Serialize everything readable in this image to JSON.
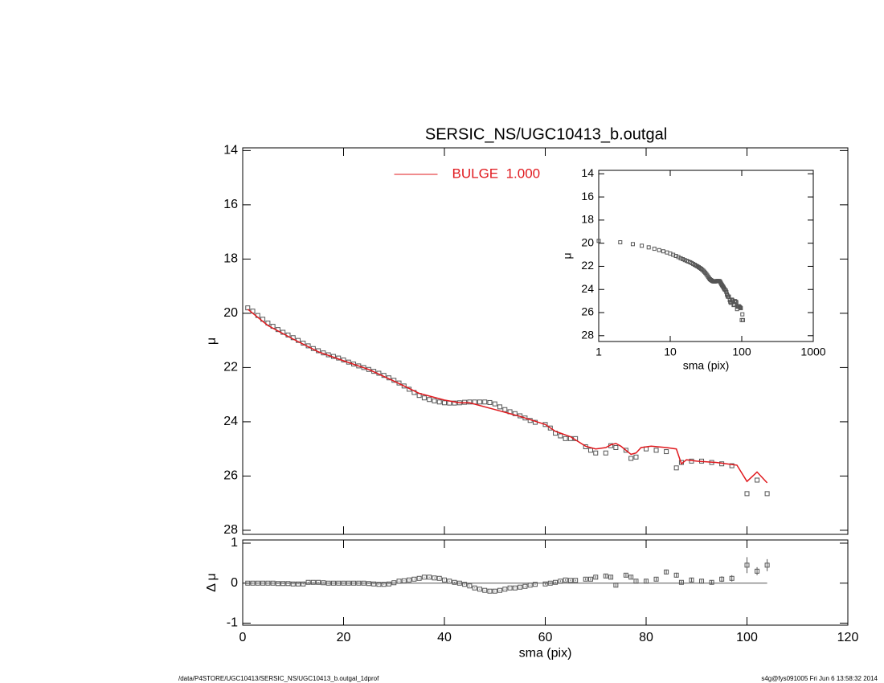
{
  "chart_data": [
    {
      "type": "scatter",
      "title": "SERSIC_NS/UGC10413_b.outgal",
      "ylabel": "μ",
      "xlim": [
        0,
        120
      ],
      "xticks": [
        0,
        20,
        40,
        60,
        80,
        100,
        120
      ],
      "xticklabels": false,
      "ylim": [
        28.15,
        13.9
      ],
      "yticks": [
        14,
        16,
        18,
        20,
        22,
        24,
        26,
        28
      ],
      "legend": "top",
      "series": [
        {
          "mark": "square",
          "color": "#555555",
          "x": [
            1,
            2,
            3,
            4,
            5,
            6,
            7,
            8,
            9,
            10,
            11,
            12,
            13,
            14,
            15,
            16,
            17,
            18,
            19,
            20,
            21,
            22,
            23,
            24,
            25,
            26,
            27,
            28,
            29,
            30,
            31,
            32,
            33,
            34,
            35,
            36,
            37,
            38,
            39,
            40,
            41,
            42,
            43,
            44,
            45,
            46,
            47,
            48,
            49,
            50,
            51,
            52,
            53,
            54,
            55,
            56,
            57,
            58,
            60,
            61,
            62,
            63,
            64,
            65,
            66,
            68,
            69,
            70,
            72,
            73,
            74,
            76,
            77,
            78,
            80,
            82,
            84,
            86,
            87,
            89,
            91,
            93,
            95,
            97,
            100,
            102,
            104
          ],
          "values": [
            19.8,
            19.92,
            20.08,
            20.22,
            20.36,
            20.48,
            20.6,
            20.7,
            20.8,
            20.9,
            21.0,
            21.1,
            21.2,
            21.3,
            21.38,
            21.46,
            21.53,
            21.59,
            21.65,
            21.72,
            21.8,
            21.87,
            21.94,
            22.0,
            22.07,
            22.14,
            22.21,
            22.29,
            22.38,
            22.47,
            22.57,
            22.68,
            22.8,
            22.92,
            23.03,
            23.12,
            23.18,
            23.23,
            23.27,
            23.3,
            23.31,
            23.31,
            23.3,
            23.28,
            23.27,
            23.27,
            23.27,
            23.27,
            23.29,
            23.34,
            23.45,
            23.55,
            23.63,
            23.7,
            23.78,
            23.86,
            23.95,
            24.02,
            24.1,
            24.23,
            24.42,
            24.52,
            24.62,
            24.62,
            24.62,
            24.92,
            25.05,
            25.15,
            25.15,
            24.88,
            24.95,
            25.05,
            25.35,
            25.3,
            25.0,
            25.05,
            25.1,
            25.7,
            25.5,
            25.45,
            25.45,
            25.5,
            25.55,
            25.62,
            26.65,
            26.15,
            26.65
          ]
        },
        {
          "mark": "line",
          "name": "BULGE  1.000",
          "color": "#e0191e",
          "x": [
            1,
            5,
            10,
            15,
            20,
            25,
            30,
            35,
            40,
            43,
            45,
            50,
            55,
            60,
            62,
            65,
            68,
            70,
            72,
            73,
            74,
            75,
            77,
            78,
            79,
            81,
            84,
            86,
            87,
            88,
            90,
            94,
            96,
            98,
            100,
            102,
            104
          ],
          "values": [
            19.85,
            20.45,
            20.95,
            21.42,
            21.75,
            22.07,
            22.5,
            22.95,
            23.2,
            23.3,
            23.3,
            23.55,
            23.8,
            24.1,
            24.35,
            24.55,
            24.9,
            25.0,
            24.95,
            24.85,
            24.8,
            24.9,
            25.2,
            25.15,
            24.95,
            24.9,
            24.95,
            25.0,
            25.55,
            25.4,
            25.45,
            25.5,
            25.55,
            25.6,
            26.2,
            25.85,
            26.25
          ]
        }
      ]
    },
    {
      "type": "scatter",
      "xlabel": "sma (pix)",
      "ylabel": "Δ μ",
      "xlim": [
        0,
        120
      ],
      "xticks": [
        0,
        20,
        40,
        60,
        80,
        100,
        120
      ],
      "ylim": [
        -1.05,
        1.08
      ],
      "yticks": [
        -1,
        0,
        1
      ],
      "refline": 0,
      "series": [
        {
          "mark": "square-error",
          "color": "#555555",
          "x": [
            1,
            2,
            3,
            4,
            5,
            6,
            7,
            8,
            9,
            10,
            11,
            12,
            13,
            14,
            15,
            16,
            17,
            18,
            19,
            20,
            21,
            22,
            23,
            24,
            25,
            26,
            27,
            28,
            29,
            30,
            31,
            32,
            33,
            34,
            35,
            36,
            37,
            38,
            39,
            40,
            41,
            42,
            43,
            44,
            45,
            46,
            47,
            48,
            49,
            50,
            51,
            52,
            53,
            54,
            55,
            56,
            57,
            58,
            60,
            61,
            62,
            63,
            64,
            65,
            66,
            68,
            69,
            70,
            72,
            73,
            74,
            76,
            77,
            78,
            80,
            82,
            84,
            86,
            87,
            89,
            91,
            93,
            95,
            97,
            100,
            102,
            104
          ],
          "values": [
            0,
            0,
            0,
            0,
            0,
            0,
            -0.01,
            -0.01,
            -0.01,
            -0.02,
            -0.02,
            -0.02,
            0.02,
            0.02,
            0.02,
            0.01,
            0,
            0,
            0,
            0,
            0,
            0,
            0,
            0,
            -0.01,
            -0.02,
            -0.03,
            -0.03,
            -0.02,
            0.01,
            0.05,
            0.06,
            0.08,
            0.1,
            0.12,
            0.15,
            0.15,
            0.13,
            0.12,
            0.08,
            0.05,
            0.02,
            0,
            -0.03,
            -0.07,
            -0.12,
            -0.15,
            -0.18,
            -0.2,
            -0.2,
            -0.18,
            -0.15,
            -0.12,
            -0.12,
            -0.1,
            -0.08,
            -0.05,
            -0.03,
            -0.02,
            0,
            0.02,
            0.05,
            0.08,
            0.07,
            0.07,
            0.1,
            0.1,
            0.15,
            0.18,
            0.15,
            -0.05,
            0.2,
            0.15,
            0.05,
            0.05,
            0.1,
            0.28,
            0.2,
            0.02,
            0.08,
            0.05,
            0.02,
            0.1,
            0.12,
            0.45,
            0.3,
            0.45
          ],
          "errors": [
            0.01,
            0.01,
            0.01,
            0.01,
            0.01,
            0.01,
            0.01,
            0.01,
            0.01,
            0.01,
            0.01,
            0.01,
            0.01,
            0.01,
            0.01,
            0.01,
            0.01,
            0.01,
            0.01,
            0.01,
            0.01,
            0.01,
            0.01,
            0.01,
            0.01,
            0.01,
            0.01,
            0.01,
            0.01,
            0.01,
            0.01,
            0.01,
            0.01,
            0.01,
            0.01,
            0.01,
            0.01,
            0.01,
            0.01,
            0.01,
            0.01,
            0.01,
            0.01,
            0.01,
            0.01,
            0.01,
            0.01,
            0.01,
            0.01,
            0.01,
            0.01,
            0.01,
            0.01,
            0.01,
            0.01,
            0.01,
            0.01,
            0.01,
            0.02,
            0.02,
            0.02,
            0.02,
            0.02,
            0.02,
            0.02,
            0.03,
            0.03,
            0.03,
            0.04,
            0.04,
            0.04,
            0.04,
            0.04,
            0.04,
            0.04,
            0.04,
            0.06,
            0.06,
            0.04,
            0.05,
            0.05,
            0.05,
            0.07,
            0.08,
            0.2,
            0.1,
            0.15
          ]
        }
      ]
    },
    {
      "type": "scatter",
      "xlabel": "sma (pix)",
      "ylabel": "μ",
      "log": true,
      "xlim": [
        1,
        1000
      ],
      "xticks": [
        1,
        10,
        100,
        1000
      ],
      "ylim": [
        28.5,
        13.7
      ],
      "yticks": [
        14,
        16,
        18,
        20,
        22,
        24,
        26,
        28
      ],
      "series": [
        {
          "mark": "square",
          "color": "#555555",
          "x": [
            1,
            2,
            3,
            4,
            5,
            6,
            7,
            8,
            9,
            10,
            11,
            12,
            13,
            14,
            15,
            16,
            17,
            18,
            19,
            20,
            21,
            22,
            23,
            24,
            25,
            26,
            27,
            28,
            29,
            30,
            31,
            32,
            33,
            34,
            35,
            36,
            37,
            38,
            39,
            40,
            41,
            42,
            43,
            44,
            45,
            46,
            47,
            48,
            49,
            50,
            51,
            52,
            53,
            54,
            55,
            56,
            57,
            58,
            60,
            61,
            62,
            63,
            64,
            65,
            66,
            68,
            69,
            70,
            72,
            73,
            74,
            76,
            77,
            78,
            80,
            82,
            84,
            86,
            87,
            89,
            91,
            93,
            95,
            97,
            100,
            102,
            104
          ],
          "values": [
            19.8,
            19.92,
            20.08,
            20.22,
            20.36,
            20.48,
            20.6,
            20.7,
            20.8,
            20.9,
            21.0,
            21.1,
            21.2,
            21.3,
            21.38,
            21.46,
            21.53,
            21.59,
            21.65,
            21.72,
            21.8,
            21.87,
            21.94,
            22.0,
            22.07,
            22.14,
            22.21,
            22.29,
            22.38,
            22.47,
            22.57,
            22.68,
            22.8,
            22.92,
            23.03,
            23.12,
            23.18,
            23.23,
            23.27,
            23.3,
            23.31,
            23.31,
            23.3,
            23.28,
            23.27,
            23.27,
            23.27,
            23.27,
            23.29,
            23.34,
            23.45,
            23.55,
            23.63,
            23.7,
            23.78,
            23.86,
            23.95,
            24.02,
            24.1,
            24.23,
            24.42,
            24.52,
            24.62,
            24.62,
            24.62,
            24.92,
            25.05,
            25.15,
            25.15,
            24.88,
            24.95,
            25.05,
            25.35,
            25.3,
            25.0,
            25.05,
            25.1,
            25.7,
            25.5,
            25.45,
            25.45,
            25.5,
            25.55,
            25.62,
            26.65,
            26.15,
            26.65
          ]
        }
      ]
    }
  ],
  "footer": {
    "left": "/data/P4STORE/UGC10413/SERSIC_NS/UGC10413_b.outgal_1dprof",
    "right": "s4g@fys091005  Fri Jun  6 13:58:32 2014"
  }
}
